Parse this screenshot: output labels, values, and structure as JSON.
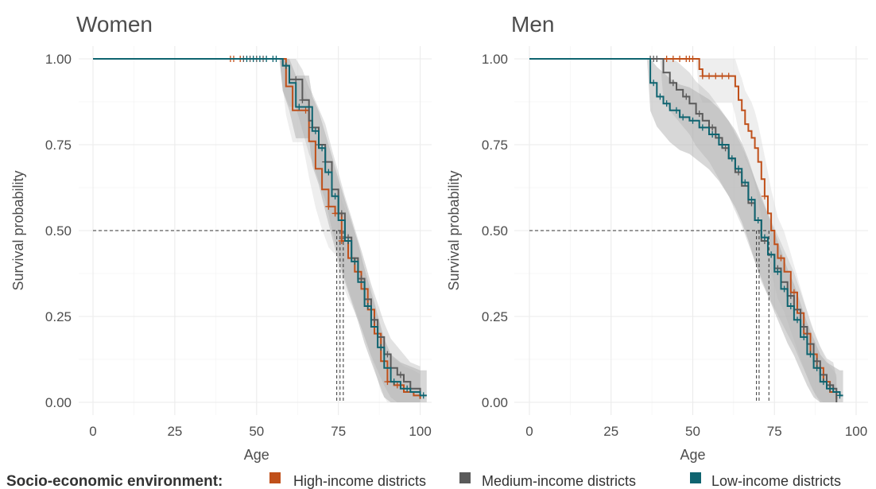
{
  "chart_data": [
    {
      "type": "line",
      "title": "Women",
      "xlabel": "Age",
      "ylabel": "Survival probability",
      "xlim": [
        0,
        102
      ],
      "ylim": [
        0,
        1
      ],
      "xticks": [
        0,
        25,
        50,
        75,
        100
      ],
      "yticks": [
        0.0,
        0.25,
        0.5,
        0.75,
        1.0
      ],
      "xtick_labels": [
        "0",
        "25",
        "50",
        "75",
        "100"
      ],
      "ytick_labels": [
        "0.00",
        "0.25",
        "0.50",
        "0.75",
        "1.00"
      ],
      "median_line_y": 0.5,
      "medians": [
        74.5,
        75.5,
        76.5
      ],
      "series": [
        {
          "name": "High-income districts",
          "color": "#c0501a",
          "points": [
            [
              0,
              1.0
            ],
            [
              57,
              1.0
            ],
            [
              59,
              0.92
            ],
            [
              61,
              0.85
            ],
            [
              64,
              0.85
            ],
            [
              66,
              0.76
            ],
            [
              68,
              0.68
            ],
            [
              70,
              0.62
            ],
            [
              72,
              0.57
            ],
            [
              74,
              0.55
            ],
            [
              76,
              0.47
            ],
            [
              78,
              0.42
            ],
            [
              80,
              0.38
            ],
            [
              82,
              0.33
            ],
            [
              84,
              0.27
            ],
            [
              86,
              0.2
            ],
            [
              88,
              0.12
            ],
            [
              90,
              0.06
            ],
            [
              92,
              0.05
            ],
            [
              95,
              0.03
            ],
            [
              98,
              0.02
            ],
            [
              100,
              0.01
            ]
          ],
          "censor_x": [
            42,
            43,
            45,
            65,
            72,
            74,
            76,
            79,
            81,
            85,
            87,
            90,
            93
          ]
        },
        {
          "name": "Medium-income districts",
          "color": "#5a5a5a",
          "points": [
            [
              0,
              1.0
            ],
            [
              57,
              1.0
            ],
            [
              58,
              0.98
            ],
            [
              60,
              0.94
            ],
            [
              62,
              0.94
            ],
            [
              64,
              0.88
            ],
            [
              66,
              0.82
            ],
            [
              67,
              0.8
            ],
            [
              69,
              0.75
            ],
            [
              71,
              0.7
            ],
            [
              73,
              0.62
            ],
            [
              75,
              0.55
            ],
            [
              77,
              0.48
            ],
            [
              79,
              0.42
            ],
            [
              81,
              0.36
            ],
            [
              83,
              0.3
            ],
            [
              85,
              0.24
            ],
            [
              87,
              0.19
            ],
            [
              89,
              0.14
            ],
            [
              91,
              0.1
            ],
            [
              93,
              0.08
            ],
            [
              95,
              0.06
            ],
            [
              97,
              0.04
            ],
            [
              100,
              0.03
            ]
          ],
          "censor_x": [
            46,
            48,
            50,
            52,
            62,
            64,
            67,
            69,
            71,
            76,
            78,
            82,
            86,
            90,
            94
          ]
        },
        {
          "name": "Low-income districts",
          "color": "#0f6470",
          "points": [
            [
              0,
              1.0
            ],
            [
              57,
              1.0
            ],
            [
              58,
              0.98
            ],
            [
              60,
              0.93
            ],
            [
              62,
              0.86
            ],
            [
              66,
              0.86
            ],
            [
              67,
              0.79
            ],
            [
              69,
              0.74
            ],
            [
              71,
              0.67
            ],
            [
              73,
              0.6
            ],
            [
              75,
              0.53
            ],
            [
              77,
              0.47
            ],
            [
              79,
              0.41
            ],
            [
              81,
              0.35
            ],
            [
              83,
              0.28
            ],
            [
              85,
              0.22
            ],
            [
              87,
              0.16
            ],
            [
              89,
              0.1
            ],
            [
              91,
              0.06
            ],
            [
              94,
              0.04
            ],
            [
              97,
              0.03
            ],
            [
              100,
              0.02
            ],
            [
              102,
              0.02
            ]
          ],
          "censor_x": [
            47,
            49,
            51,
            53,
            55,
            56,
            59,
            63,
            68,
            70,
            72,
            74,
            78,
            80,
            84,
            88,
            92,
            96,
            101
          ]
        }
      ]
    },
    {
      "type": "line",
      "title": "Men",
      "xlabel": "Age",
      "ylabel": "Survival probability",
      "xlim": [
        0,
        100
      ],
      "ylim": [
        0,
        1
      ],
      "xticks": [
        0,
        25,
        50,
        75,
        100
      ],
      "yticks": [
        0.0,
        0.25,
        0.5,
        0.75,
        1.0
      ],
      "xtick_labels": [
        "0",
        "25",
        "50",
        "75",
        "100"
      ],
      "ytick_labels": [
        "0.00",
        "0.25",
        "0.50",
        "0.75",
        "1.00"
      ],
      "median_line_y": 0.5,
      "medians": [
        69.5,
        70.3,
        73.3
      ],
      "series": [
        {
          "name": "High-income districts",
          "color": "#c0501a",
          "points": [
            [
              0,
              1.0
            ],
            [
              51,
              1.0
            ],
            [
              52,
              0.97
            ],
            [
              53,
              0.95
            ],
            [
              62,
              0.95
            ],
            [
              63,
              0.92
            ],
            [
              64,
              0.88
            ],
            [
              65,
              0.85
            ],
            [
              66,
              0.81
            ],
            [
              67,
              0.79
            ],
            [
              68,
              0.77
            ],
            [
              69,
              0.74
            ],
            [
              70,
              0.7
            ],
            [
              71,
              0.65
            ],
            [
              72,
              0.6
            ],
            [
              73,
              0.55
            ],
            [
              74,
              0.5
            ],
            [
              75,
              0.46
            ],
            [
              76,
              0.42
            ],
            [
              78,
              0.38
            ],
            [
              80,
              0.32
            ],
            [
              82,
              0.26
            ],
            [
              84,
              0.2
            ],
            [
              86,
              0.14
            ],
            [
              88,
              0.1
            ],
            [
              90,
              0.06
            ],
            [
              92,
              0.03
            ],
            [
              94,
              0.01
            ]
          ],
          "censor_x": [
            42,
            44,
            46,
            48,
            49,
            50,
            53,
            55,
            57,
            59,
            61,
            72,
            77,
            81,
            85,
            89
          ]
        },
        {
          "name": "Medium-income districts",
          "color": "#5a5a5a",
          "points": [
            [
              0,
              1.0
            ],
            [
              40,
              1.0
            ],
            [
              41,
              0.96
            ],
            [
              43,
              0.93
            ],
            [
              45,
              0.91
            ],
            [
              47,
              0.89
            ],
            [
              49,
              0.87
            ],
            [
              51,
              0.84
            ],
            [
              53,
              0.82
            ],
            [
              55,
              0.8
            ],
            [
              57,
              0.77
            ],
            [
              59,
              0.74
            ],
            [
              61,
              0.71
            ],
            [
              63,
              0.67
            ],
            [
              65,
              0.63
            ],
            [
              67,
              0.58
            ],
            [
              69,
              0.53
            ],
            [
              71,
              0.47
            ],
            [
              73,
              0.43
            ],
            [
              75,
              0.39
            ],
            [
              77,
              0.35
            ],
            [
              79,
              0.31
            ],
            [
              81,
              0.27
            ],
            [
              83,
              0.22
            ],
            [
              85,
              0.17
            ],
            [
              87,
              0.12
            ],
            [
              89,
              0.08
            ],
            [
              91,
              0.05
            ],
            [
              93,
              0.04
            ],
            [
              94,
              0.0
            ]
          ],
          "censor_x": [
            37,
            38,
            39,
            44,
            48,
            52,
            56,
            60,
            64,
            68,
            72,
            76,
            80,
            84,
            88,
            92
          ]
        },
        {
          "name": "Low-income districts",
          "color": "#0f6470",
          "points": [
            [
              0,
              1.0
            ],
            [
              36,
              1.0
            ],
            [
              37,
              0.93
            ],
            [
              39,
              0.89
            ],
            [
              41,
              0.87
            ],
            [
              43,
              0.85
            ],
            [
              46,
              0.83
            ],
            [
              49,
              0.82
            ],
            [
              52,
              0.8
            ],
            [
              55,
              0.78
            ],
            [
              58,
              0.75
            ],
            [
              61,
              0.71
            ],
            [
              63,
              0.68
            ],
            [
              65,
              0.64
            ],
            [
              67,
              0.59
            ],
            [
              69,
              0.53
            ],
            [
              71,
              0.48
            ],
            [
              73,
              0.43
            ],
            [
              75,
              0.38
            ],
            [
              77,
              0.33
            ],
            [
              79,
              0.28
            ],
            [
              81,
              0.24
            ],
            [
              83,
              0.19
            ],
            [
              85,
              0.14
            ],
            [
              87,
              0.1
            ],
            [
              89,
              0.06
            ],
            [
              91,
              0.04
            ],
            [
              93,
              0.03
            ],
            [
              95,
              0.02
            ],
            [
              96,
              0.02
            ]
          ],
          "censor_x": [
            38,
            40,
            42,
            45,
            47,
            50,
            53,
            56,
            59,
            62,
            64,
            66,
            68,
            70,
            72,
            74,
            76,
            78,
            80,
            82,
            84,
            86,
            88,
            90,
            92,
            95
          ]
        }
      ]
    }
  ],
  "legend": {
    "title": "Socio-economic environment:",
    "position": "bottom",
    "items": [
      {
        "label": "High-income districts",
        "color": "#c0501a"
      },
      {
        "label": "Medium-income districts",
        "color": "#5a5a5a"
      },
      {
        "label": "Low-income districts",
        "color": "#0f6470"
      }
    ]
  }
}
